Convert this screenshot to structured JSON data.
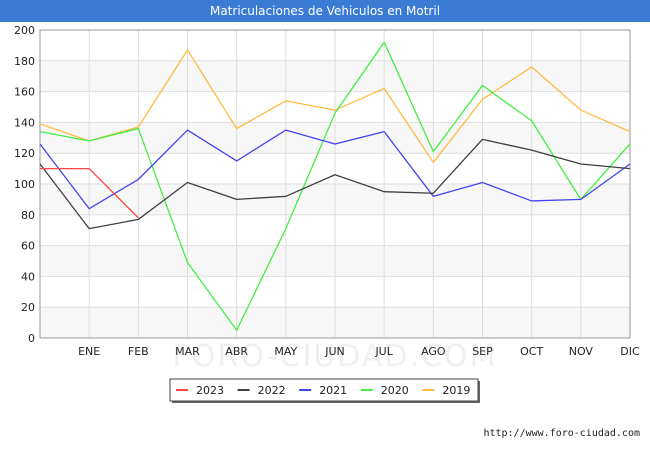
{
  "chart_data": {
    "type": "line",
    "title": "Matriculaciones de Vehiculos en Motril",
    "categories": [
      "",
      "ENE",
      "FEB",
      "MAR",
      "ABR",
      "MAY",
      "JUN",
      "JUL",
      "AGO",
      "SEP",
      "OCT",
      "NOV",
      "DIC"
    ],
    "y_ticks": [
      "0",
      "20",
      "40",
      "60",
      "80",
      "100",
      "120",
      "140",
      "160",
      "180",
      "200"
    ],
    "ylim": [
      0,
      200
    ],
    "grid": true,
    "legend_position": "bottom",
    "series": [
      {
        "name": "2023",
        "color": "#ff4444",
        "values": [
          110,
          110,
          78,
          null,
          null,
          null,
          null,
          null,
          null,
          null,
          null,
          null,
          null
        ]
      },
      {
        "name": "2022",
        "color": "#404040",
        "values": [
          113,
          71,
          77,
          101,
          90,
          92,
          106,
          95,
          94,
          129,
          122,
          113,
          110
        ]
      },
      {
        "name": "2021",
        "color": "#4444ee",
        "values": [
          126,
          84,
          103,
          135,
          115,
          135,
          126,
          134,
          92,
          101,
          89,
          90,
          113
        ]
      },
      {
        "name": "2020",
        "color": "#44ee44",
        "values": [
          134,
          128,
          136,
          49,
          5,
          71,
          146,
          192,
          121,
          164,
          141,
          90,
          126
        ]
      },
      {
        "name": "2019",
        "color": "#ffbb44",
        "values": [
          139,
          128,
          137,
          187,
          136,
          154,
          148,
          162,
          114,
          155,
          176,
          148,
          134
        ]
      }
    ]
  },
  "footer": {
    "source": "http://www.foro-ciudad.com"
  },
  "watermark": "FORO-CIUDAD.COM"
}
